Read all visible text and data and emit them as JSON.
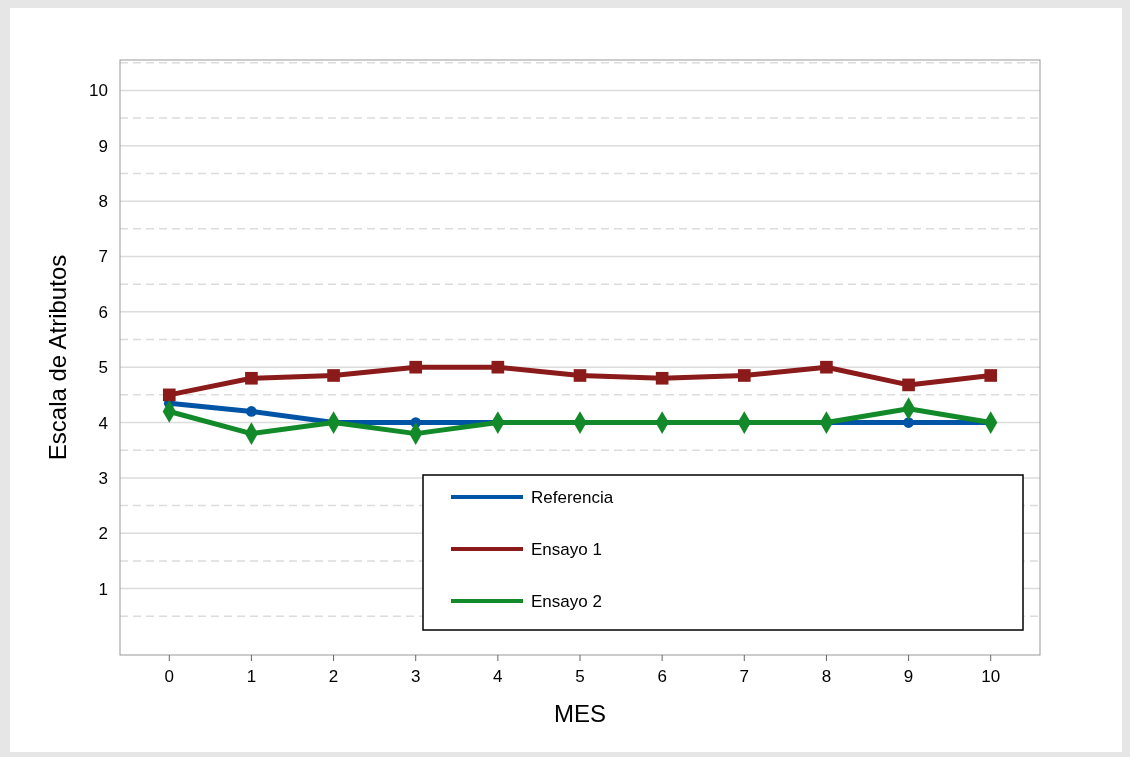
{
  "chart_data": {
    "type": "line",
    "xlabel": "MES",
    "ylabel": "Escala de Atributos",
    "x": [
      0,
      1,
      2,
      3,
      4,
      5,
      6,
      7,
      8,
      9,
      10
    ],
    "xlim": [
      -0.6,
      10.6
    ],
    "xticks": [
      0,
      1,
      2,
      3,
      4,
      5,
      6,
      7,
      8,
      9,
      10
    ],
    "ylim": [
      -0.2,
      10.55
    ],
    "yticks": [
      {
        "value": 0.5,
        "label": null
      },
      1,
      {
        "value": 1.5,
        "label": null
      },
      2,
      {
        "value": 2.5,
        "label": null
      },
      3,
      {
        "value": 3.5,
        "label": null
      },
      4,
      {
        "value": 4.5,
        "label": null
      },
      5,
      {
        "value": 5.5,
        "label": null
      },
      6,
      {
        "value": 6.5,
        "label": null
      },
      7,
      {
        "value": 7.5,
        "label": null
      },
      8,
      {
        "value": 8.5,
        "label": null
      },
      9,
      {
        "value": 9.5,
        "label": null
      },
      10,
      {
        "value": 10.5,
        "label": null
      }
    ],
    "grid": "y",
    "legend": "bottom",
    "line_style": "solid",
    "series": [
      {
        "name": "Referencia",
        "color": "#0054a6",
        "marker": "circle",
        "values": [
          4.35,
          4.2,
          4,
          4,
          4,
          4,
          4,
          4,
          4,
          4,
          4
        ]
      },
      {
        "name": "Ensayo 1",
        "color": "#8b1a1a",
        "marker": "square",
        "values": [
          4.5,
          4.8,
          4.85,
          5,
          5,
          4.85,
          4.8,
          4.85,
          5,
          4.68,
          4.85
        ]
      },
      {
        "name": "Ensayo 2",
        "color": "#138a2a",
        "marker": "diamond",
        "values": [
          4.2,
          3.8,
          4,
          3.8,
          4,
          4,
          4,
          4,
          4,
          4.25,
          4
        ]
      }
    ]
  }
}
